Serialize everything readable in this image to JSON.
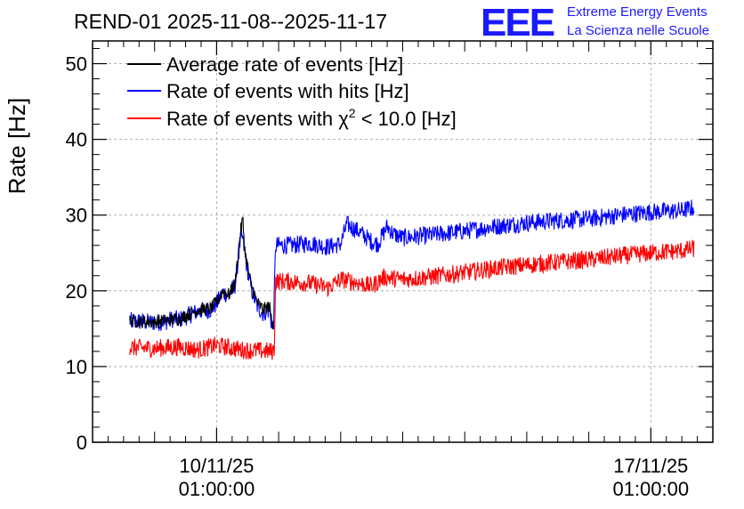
{
  "chart_data": {
    "type": "line",
    "title": "REND-01 2025-11-08--2025-11-17",
    "ylabel": "Rate [Hz]",
    "xlabel": "",
    "ylim": [
      0,
      53
    ],
    "xlim_days": [
      0,
      10
    ],
    "x_ticks": [
      {
        "day": 2.0,
        "line1": "10/11/25",
        "line2": "01:00:00"
      },
      {
        "day": 9.0,
        "line1": "17/11/25",
        "line2": "01:00:00"
      }
    ],
    "y_ticks": [
      0,
      10,
      20,
      30,
      40,
      50
    ],
    "grid": true,
    "legend_position": "top-left",
    "series": [
      {
        "name": "Average rate of events [Hz]",
        "color": "#000000",
        "points": [
          [
            0.6,
            16.0
          ],
          [
            1.0,
            15.9
          ],
          [
            1.4,
            16.3
          ],
          [
            1.7,
            17.5
          ],
          [
            1.9,
            17.6
          ],
          [
            2.0,
            18.5
          ],
          [
            2.1,
            20.0
          ],
          [
            2.2,
            19.5
          ],
          [
            2.3,
            21.0
          ],
          [
            2.38,
            27.5
          ],
          [
            2.42,
            29.5
          ],
          [
            2.46,
            25.0
          ],
          [
            2.55,
            21.0
          ],
          [
            2.65,
            18.5
          ],
          [
            2.75,
            17.5
          ],
          [
            2.85,
            18.0
          ],
          [
            2.9,
            15.5
          ],
          [
            2.92,
            17.0
          ]
        ]
      },
      {
        "name": "Rate of events with hits [Hz]",
        "color": "#0000ff",
        "points": [
          [
            0.6,
            16.0
          ],
          [
            1.0,
            15.8
          ],
          [
            1.2,
            16.0
          ],
          [
            1.3,
            16.3
          ],
          [
            1.4,
            16.2
          ],
          [
            1.7,
            17.3
          ],
          [
            1.9,
            17.5
          ],
          [
            2.0,
            18.3
          ],
          [
            2.1,
            19.8
          ],
          [
            2.2,
            19.4
          ],
          [
            2.3,
            20.8
          ],
          [
            2.38,
            26.5
          ],
          [
            2.42,
            27.0
          ],
          [
            2.46,
            24.5
          ],
          [
            2.55,
            20.5
          ],
          [
            2.65,
            18.0
          ],
          [
            2.75,
            17.0
          ],
          [
            2.85,
            17.5
          ],
          [
            2.9,
            15.0
          ],
          [
            2.92,
            16.0
          ],
          [
            2.95,
            26.0
          ],
          [
            3.2,
            26.0
          ],
          [
            3.5,
            26.3
          ],
          [
            3.8,
            25.8
          ],
          [
            4.0,
            26.2
          ],
          [
            4.1,
            28.8
          ],
          [
            4.3,
            27.8
          ],
          [
            4.5,
            26.5
          ],
          [
            4.6,
            26.2
          ],
          [
            4.75,
            28.5
          ],
          [
            4.85,
            27.5
          ],
          [
            5.0,
            27.0
          ],
          [
            5.5,
            27.4
          ],
          [
            6.0,
            27.9
          ],
          [
            6.5,
            28.5
          ],
          [
            7.0,
            29.0
          ],
          [
            7.5,
            29.3
          ],
          [
            8.0,
            29.5
          ],
          [
            8.5,
            30.0
          ],
          [
            9.0,
            30.4
          ],
          [
            9.5,
            30.6
          ],
          [
            9.7,
            31.0
          ]
        ]
      },
      {
        "name": "Rate of events with χ² < 10.0 [Hz]",
        "color": "#ff0000",
        "points": [
          [
            0.6,
            12.5
          ],
          [
            1.0,
            12.4
          ],
          [
            1.4,
            12.6
          ],
          [
            1.7,
            12.2
          ],
          [
            2.0,
            12.8
          ],
          [
            2.4,
            12.2
          ],
          [
            2.9,
            12.0
          ],
          [
            2.93,
            12.3
          ],
          [
            2.95,
            21.3
          ],
          [
            3.2,
            21.2
          ],
          [
            3.5,
            21.0
          ],
          [
            3.8,
            20.4
          ],
          [
            4.0,
            21.5
          ],
          [
            4.2,
            21.2
          ],
          [
            4.5,
            20.6
          ],
          [
            4.7,
            21.8
          ],
          [
            5.0,
            21.5
          ],
          [
            5.5,
            21.9
          ],
          [
            6.0,
            22.4
          ],
          [
            6.5,
            23.0
          ],
          [
            7.0,
            23.4
          ],
          [
            7.5,
            23.8
          ],
          [
            8.0,
            24.1
          ],
          [
            8.5,
            24.6
          ],
          [
            9.0,
            25.0
          ],
          [
            9.5,
            25.3
          ],
          [
            9.7,
            25.6
          ]
        ]
      }
    ]
  },
  "legend": {
    "items": [
      {
        "text": "Average rate of events [Hz]",
        "color": "#000000"
      },
      {
        "text": "Rate of events with hits [Hz]",
        "color": "#0000ff"
      },
      {
        "text_prefix": "Rate of events with ",
        "chi": "χ",
        "sup": "2",
        "text_suffix": " < 10.0 [Hz]",
        "color": "#ff0000"
      }
    ]
  },
  "logo": {
    "mark": "EEE",
    "line1": "Extreme Energy Events",
    "line2": "La Scienza nelle Scuole",
    "color": "#1a1aff"
  }
}
